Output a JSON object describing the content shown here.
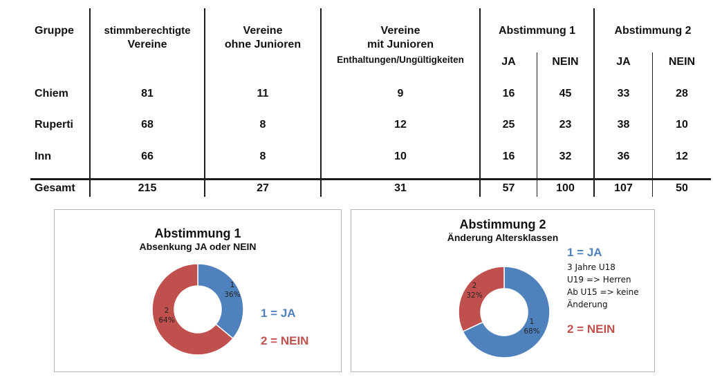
{
  "table": {
    "headers": {
      "gruppe": "Gruppe",
      "stimm_line1": "stimmberechtigte",
      "stimm_line2": "Vereine",
      "ohne_line1": "Vereine",
      "ohne_line2": "ohne Junioren",
      "mit_line1": "Vereine",
      "mit_line2": "mit Junioren",
      "enthaltungen": "Enthaltungen/Ungültigkeiten",
      "abst1": "Abstimmung 1",
      "abst2": "Abstimmung 2",
      "ja1": "JA",
      "nein1": "NEIN",
      "ja2": "JA",
      "nein2": "NEIN"
    },
    "rows": [
      {
        "name": "Chiem",
        "stimm": "81",
        "ohne": "11",
        "mit": "9",
        "a1_ja": "16",
        "a1_nein": "45",
        "a2_ja": "33",
        "a2_nein": "28"
      },
      {
        "name": "Ruperti",
        "stimm": "68",
        "ohne": "8",
        "mit": "12",
        "a1_ja": "25",
        "a1_nein": "23",
        "a2_ja": "38",
        "a2_nein": "10"
      },
      {
        "name": "Inn",
        "stimm": "66",
        "ohne": "8",
        "mit": "10",
        "a1_ja": "16",
        "a1_nein": "32",
        "a2_ja": "36",
        "a2_nein": "12"
      }
    ],
    "total": {
      "name": "Gesamt",
      "stimm": "215",
      "ohne": "27",
      "mit": "31",
      "a1_ja": "57",
      "a1_nein": "100",
      "a2_ja": "107",
      "a2_nein": "50"
    }
  },
  "charts": [
    {
      "title": "Abstimmung 1",
      "subtitle": "Absenkung JA oder NEIN",
      "legend_ja": "1 = JA",
      "legend_nein": "2 = NEIN",
      "notes": []
    },
    {
      "title": "Abstimmung 2",
      "subtitle": "Änderung Altersklassen",
      "legend_ja": "1 = JA",
      "legend_nein": "2 = NEIN",
      "notes": [
        "3 Jahre U18",
        "U19 => Herren",
        "Ab U15 => keine",
        "Änderung"
      ]
    }
  ],
  "colors": {
    "ja": "#4f81bd",
    "nein": "#c0504d"
  },
  "chart_data": [
    {
      "type": "pie",
      "title": "Abstimmung 1",
      "subtitle": "Absenkung JA oder NEIN",
      "categories": [
        "1",
        "2"
      ],
      "values": [
        36,
        64
      ],
      "labels": [
        "1\n36%",
        "2\n64%"
      ],
      "colors": [
        "#4f81bd",
        "#c0504d"
      ],
      "legend": [
        "1 = JA",
        "2 = NEIN"
      ]
    },
    {
      "type": "pie",
      "title": "Abstimmung 2",
      "subtitle": "Änderung Altersklassen",
      "categories": [
        "1",
        "2"
      ],
      "values": [
        68,
        32
      ],
      "labels": [
        "1\n68%",
        "2\n32%"
      ],
      "colors": [
        "#4f81bd",
        "#c0504d"
      ],
      "legend": [
        "1 = JA",
        "2 = NEIN"
      ]
    }
  ]
}
